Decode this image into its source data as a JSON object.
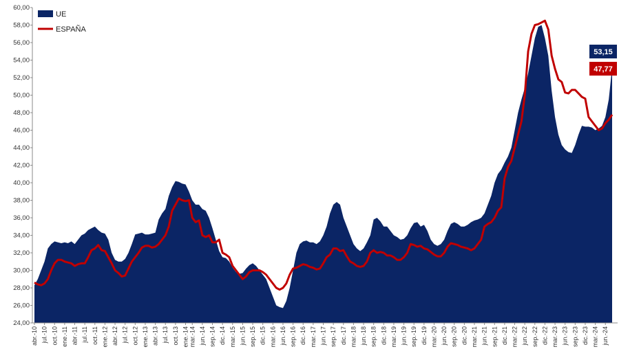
{
  "chart_data": {
    "type": "area-line",
    "categories": [
      "abr.-10",
      null,
      null,
      "jul.-10",
      null,
      null,
      "oct.-10",
      null,
      null,
      "ene.-11",
      null,
      null,
      "abr.-11",
      null,
      null,
      "jul.-11",
      null,
      null,
      "oct.-11",
      null,
      null,
      "ene.-12",
      null,
      null,
      "abr.-12",
      null,
      null,
      "jul.-12",
      null,
      null,
      "oct.-12",
      null,
      null,
      "ene.-13",
      null,
      null,
      "abr.-13",
      null,
      null,
      "jul.-13",
      null,
      null,
      "oct.-13",
      null,
      null,
      "ene.-14",
      null,
      "mar.-14",
      null,
      null,
      "jun.-14",
      null,
      null,
      "sep.-14",
      null,
      null,
      "dic.-14",
      null,
      null,
      "mar.-15",
      null,
      null,
      "jun.-15",
      null,
      null,
      "sep.-15",
      null,
      null,
      "dic.-15",
      null,
      null,
      "mar.-16",
      null,
      null,
      "jun.-16",
      null,
      null,
      "sep.-16",
      null,
      null,
      "dic.-16",
      null,
      null,
      "mar.-17",
      null,
      null,
      "jun.-17",
      null,
      null,
      "sep.-17",
      null,
      null,
      "dic.-17",
      null,
      null,
      "mar.-18",
      null,
      null,
      "jun.-18",
      null,
      null,
      "sep.-18",
      null,
      null,
      "dic.-18",
      null,
      null,
      "mar.-19",
      null,
      null,
      "jun.-19",
      null,
      null,
      "sep.-19",
      null,
      null,
      "dic.-19",
      null,
      null,
      "mar.-20",
      null,
      null,
      "jun.-20",
      null,
      null,
      "sep.-20",
      null,
      null,
      "dic.-20",
      null,
      null,
      "mar.-21",
      null,
      null,
      "jun.-21",
      null,
      null,
      "sep.-21",
      null,
      null,
      "dic.-21",
      null,
      null,
      "mar.-22",
      null,
      null,
      "jun.-22",
      null,
      null,
      "sep.-22",
      null,
      null,
      "dic.-22",
      null,
      null,
      "mar.-23",
      null,
      null,
      "jun.-23",
      null,
      null,
      "sep.-23",
      null,
      null,
      "dic.-23",
      null,
      null,
      "mar.-24",
      null,
      null,
      "jun.-24",
      null,
      null
    ],
    "series": [
      {
        "name": "UE",
        "color": "#0b2565",
        "kind": "area",
        "end_label": "53,15",
        "values": [
          28.3,
          29.0,
          30.0,
          31.0,
          32.5,
          33.0,
          33.3,
          33.2,
          33.1,
          33.2,
          33.1,
          33.3,
          33.0,
          33.5,
          34.0,
          34.2,
          34.6,
          34.8,
          35.0,
          34.6,
          34.3,
          34.2,
          33.5,
          32.0,
          31.2,
          31.0,
          31.0,
          31.3,
          32.0,
          33.0,
          34.1,
          34.2,
          34.3,
          34.1,
          34.1,
          34.2,
          34.3,
          35.8,
          36.5,
          37.0,
          38.5,
          39.5,
          40.2,
          40.1,
          39.9,
          39.8,
          39.0,
          38.0,
          37.5,
          37.5,
          37.0,
          36.8,
          36.0,
          34.8,
          33.5,
          32.2,
          31.5,
          31.4,
          31.0,
          30.3,
          29.8,
          29.6,
          29.7,
          30.2,
          30.6,
          30.8,
          30.5,
          30.0,
          29.5,
          29.0,
          28.0,
          27.0,
          26.0,
          25.8,
          25.7,
          26.5,
          28.0,
          30.0,
          32.0,
          33.0,
          33.3,
          33.4,
          33.2,
          33.2,
          33.0,
          33.3,
          34.0,
          35.0,
          36.5,
          37.5,
          37.8,
          37.5,
          36.0,
          35.0,
          34.0,
          33.0,
          32.5,
          32.2,
          32.5,
          33.2,
          34.0,
          35.8,
          36.0,
          35.6,
          35.0,
          35.0,
          34.5,
          34.0,
          33.8,
          33.5,
          33.6,
          34.0,
          34.8,
          35.4,
          35.5,
          35.0,
          35.2,
          34.5,
          33.5,
          33.0,
          32.8,
          33.0,
          33.5,
          34.5,
          35.3,
          35.5,
          35.3,
          35.0,
          35.0,
          35.2,
          35.5,
          35.7,
          35.8,
          36.0,
          36.5,
          37.5,
          38.5,
          40.0,
          41.0,
          41.5,
          42.3,
          43.0,
          44.0,
          46.0,
          48.0,
          49.5,
          50.8,
          52.5,
          54.5,
          56.5,
          57.8,
          58.0,
          56.5,
          54.5,
          50.5,
          47.5,
          45.5,
          44.3,
          43.8,
          43.5,
          43.4,
          44.3,
          45.5,
          46.5,
          46.4,
          46.4,
          46.3,
          46.0,
          46.2,
          46.5,
          47.5,
          49.5,
          53.15
        ]
      },
      {
        "name": "ESPAÑA",
        "color": "#c00000",
        "kind": "line",
        "end_label": "47,77",
        "values": [
          28.6,
          28.4,
          28.3,
          28.5,
          29.0,
          30.0,
          30.8,
          31.2,
          31.2,
          31.0,
          30.9,
          30.8,
          30.5,
          30.7,
          30.8,
          30.8,
          31.5,
          32.3,
          32.5,
          32.9,
          32.3,
          32.2,
          31.5,
          30.8,
          30.0,
          29.7,
          29.3,
          29.4,
          30.2,
          31.0,
          31.5,
          32.0,
          32.6,
          32.8,
          32.8,
          32.6,
          32.7,
          33.0,
          33.5,
          34.0,
          35.0,
          36.8,
          37.5,
          38.2,
          38.0,
          37.9,
          38.0,
          36.0,
          35.5,
          35.7,
          34.0,
          33.8,
          34.0,
          33.2,
          33.2,
          33.5,
          32.0,
          31.8,
          31.5,
          30.5,
          30.0,
          29.5,
          29.0,
          29.3,
          29.8,
          30.0,
          30.0,
          30.0,
          29.8,
          29.5,
          29.0,
          28.5,
          28.0,
          27.8,
          28.0,
          28.5,
          29.5,
          30.2,
          30.3,
          30.5,
          30.7,
          30.6,
          30.4,
          30.3,
          30.1,
          30.2,
          30.8,
          31.5,
          31.8,
          32.5,
          32.5,
          32.2,
          32.3,
          31.6,
          31.0,
          30.8,
          30.5,
          30.4,
          30.5,
          31.0,
          32.0,
          32.3,
          32.0,
          32.1,
          32.0,
          31.7,
          31.7,
          31.5,
          31.2,
          31.2,
          31.5,
          32.0,
          33.0,
          32.9,
          32.7,
          32.8,
          32.5,
          32.4,
          32.1,
          31.8,
          31.6,
          31.6,
          32.0,
          32.7,
          33.1,
          33.0,
          32.9,
          32.7,
          32.6,
          32.5,
          32.3,
          32.5,
          33.0,
          33.5,
          35.0,
          35.3,
          35.5,
          36.0,
          36.8,
          37.2,
          40.5,
          41.8,
          42.5,
          44.0,
          45.5,
          47.0,
          50.0,
          55.0,
          57.0,
          58.0,
          58.1,
          58.3,
          58.5,
          57.5,
          54.5,
          53.0,
          51.8,
          51.5,
          50.3,
          50.2,
          50.6,
          50.6,
          50.2,
          49.8,
          49.6,
          47.5,
          47.0,
          46.5,
          46.0,
          46.2,
          46.8,
          47.2,
          47.77
        ]
      }
    ],
    "ylim": [
      24,
      60
    ],
    "yticks": [
      {
        "value": 24,
        "label": "24,00"
      },
      {
        "value": 26,
        "label": "26,00"
      },
      {
        "value": 28,
        "label": "28,00"
      },
      {
        "value": 30,
        "label": "30,00"
      },
      {
        "value": 32,
        "label": "32,00"
      },
      {
        "value": 34,
        "label": "34,00"
      },
      {
        "value": 36,
        "label": "36,00"
      },
      {
        "value": 38,
        "label": "38,00"
      },
      {
        "value": 40,
        "label": "40,00"
      },
      {
        "value": 42,
        "label": "42,00"
      },
      {
        "value": 44,
        "label": "44,00"
      },
      {
        "value": 46,
        "label": "46,00"
      },
      {
        "value": 48,
        "label": "48,00"
      },
      {
        "value": 50,
        "label": "50,00"
      },
      {
        "value": 52,
        "label": "52,00"
      },
      {
        "value": 54,
        "label": "54,00"
      },
      {
        "value": 56,
        "label": "56,00"
      },
      {
        "value": 58,
        "label": "58,00"
      },
      {
        "value": 60,
        "label": "60,00"
      }
    ],
    "grid": false,
    "legend": "top-left"
  }
}
